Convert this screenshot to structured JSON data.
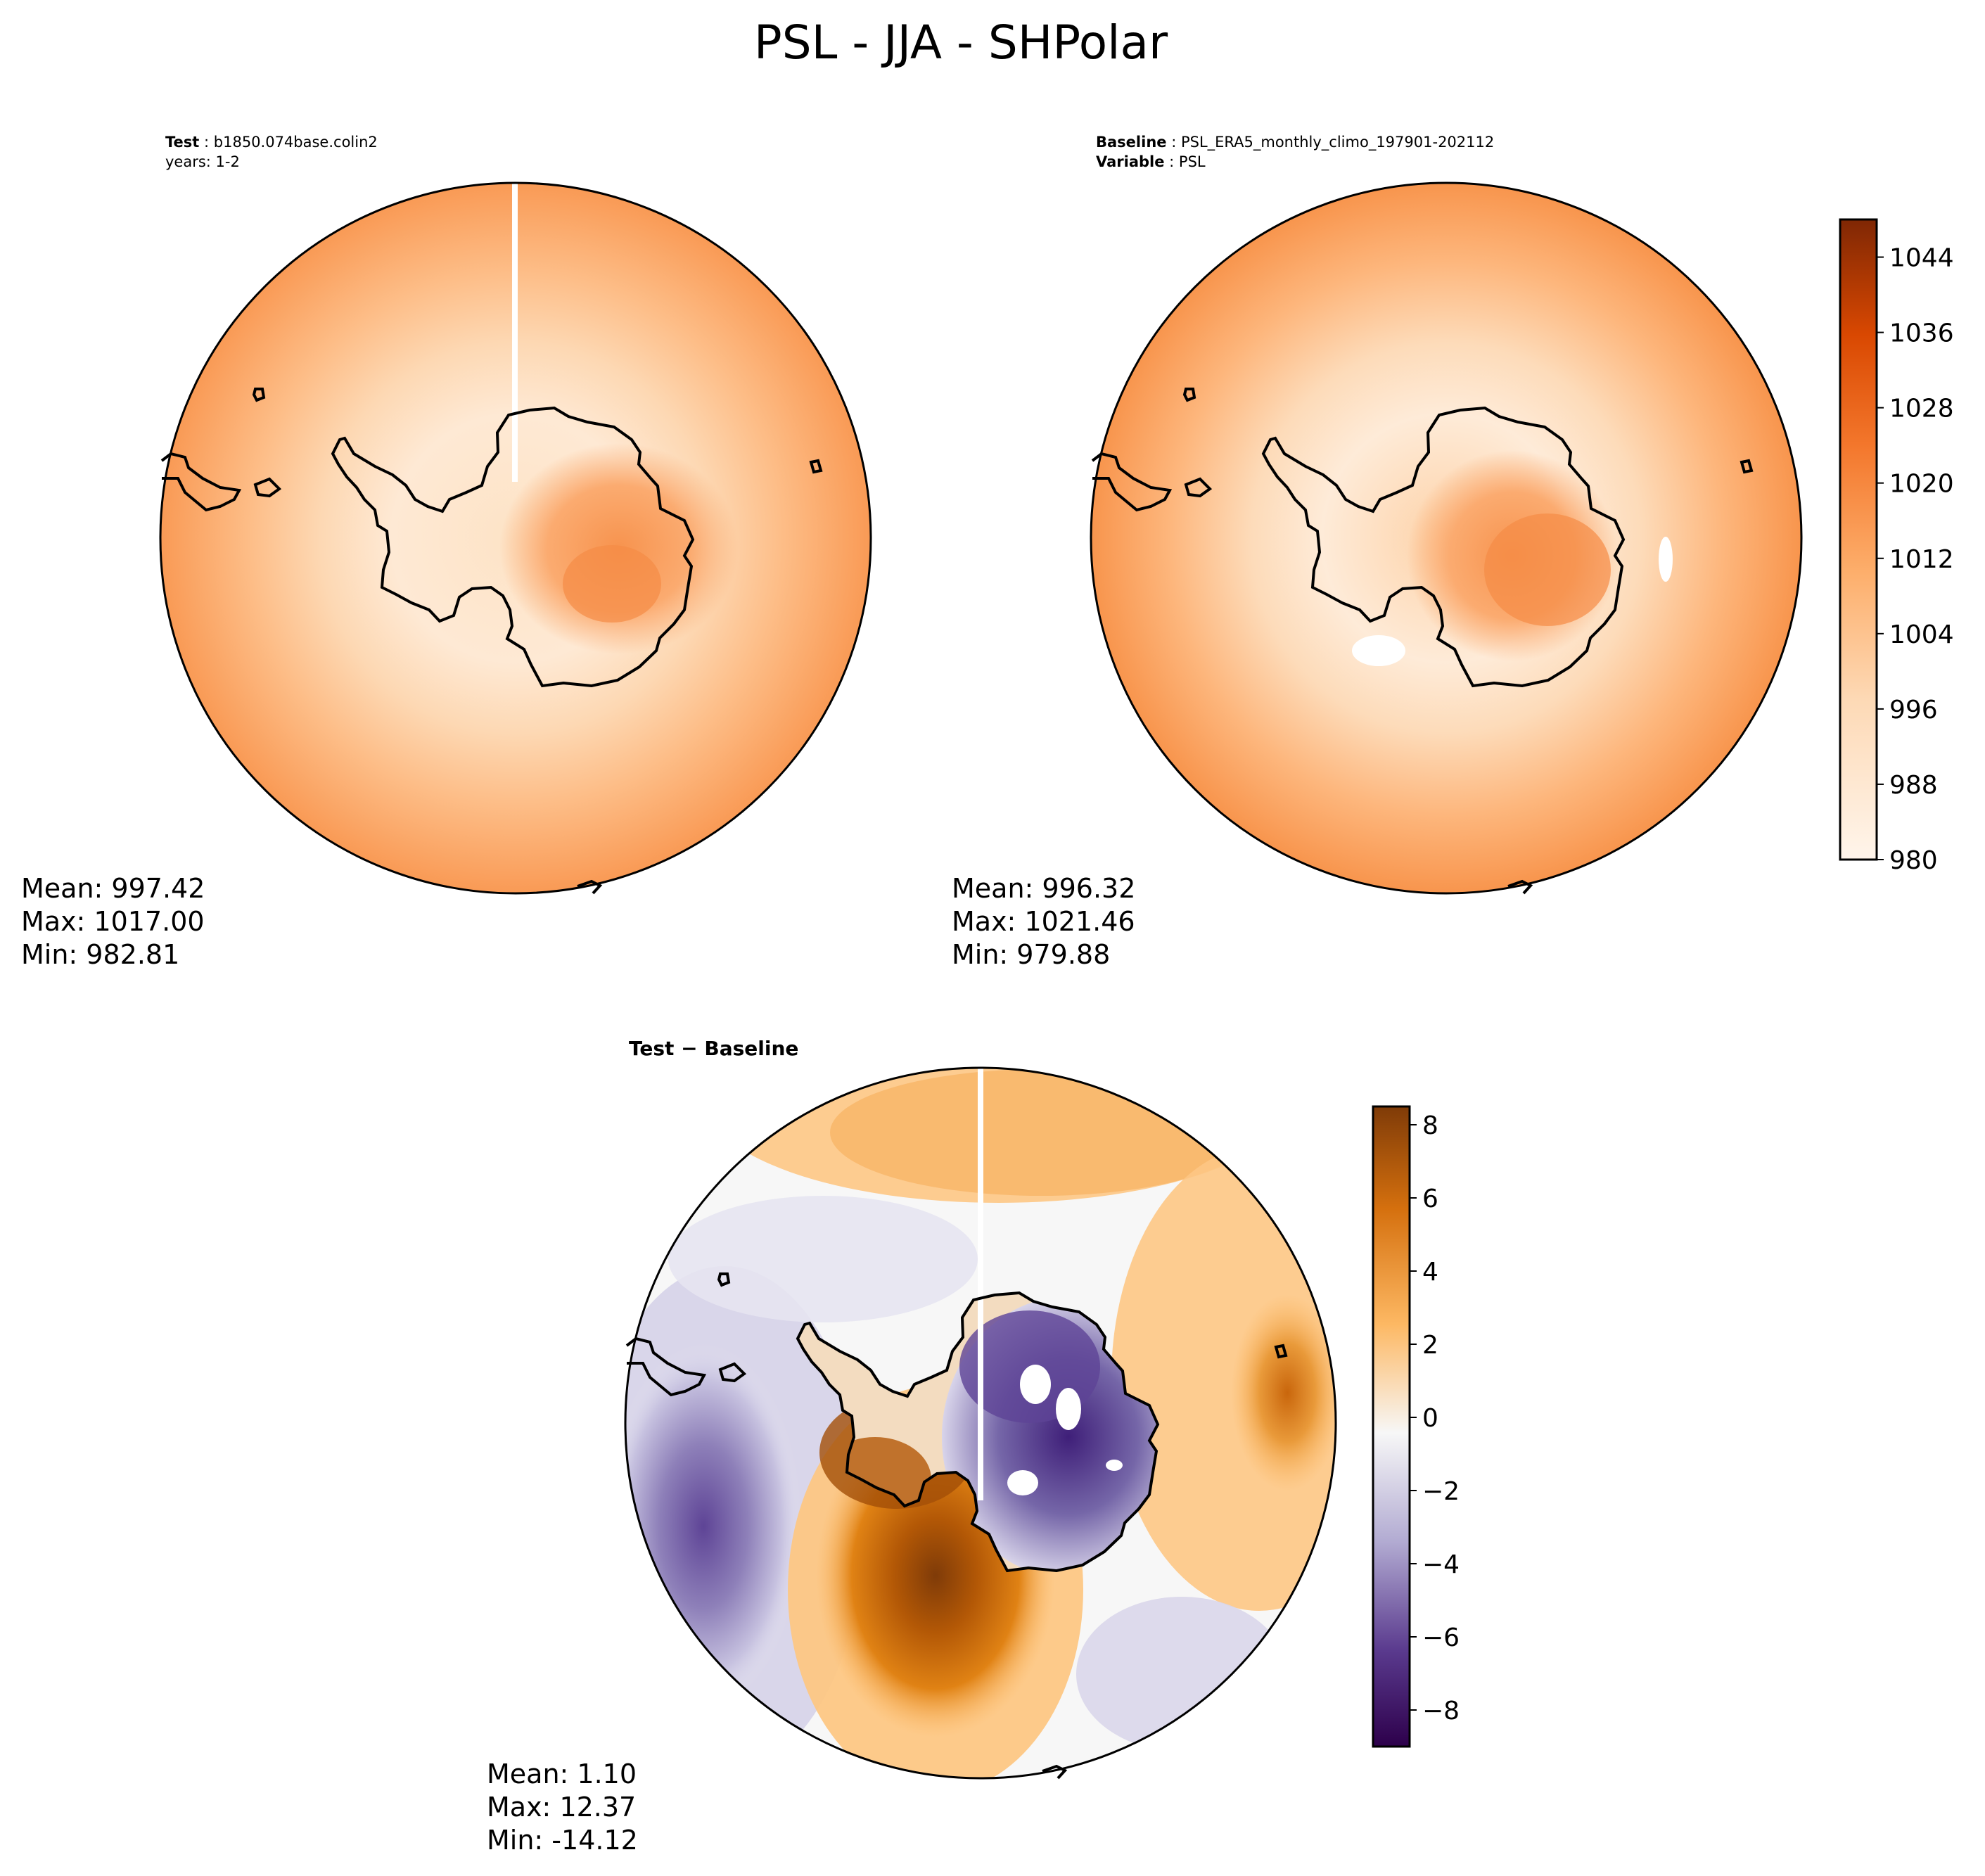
{
  "colors": {
    "seq_low": "#fff5eb",
    "seq_high": "#7f2704",
    "div_neg": "#2d004b",
    "div_zero": "#f7f7f7",
    "div_pos": "#7f3b08",
    "coast": "#000000"
  },
  "chart_data": [
    {
      "type": "heatmap",
      "panel": "test",
      "title": "PSL - JJA - SHPolar",
      "meta_key1": "Test",
      "meta_val1": "b1850.074base.colin2",
      "meta_line2": "years: 1-2",
      "stats": {
        "mean": "Mean: 997.42",
        "max": "Max: 1017.00",
        "min": "Min: 982.81"
      },
      "projection": "South Polar Stereographic",
      "field_range": [
        982.81,
        1017.0
      ]
    },
    {
      "type": "heatmap",
      "panel": "baseline",
      "meta_key1": "Baseline",
      "meta_val1": "PSL_ERA5_monthly_climo_197901-202112",
      "meta_key2": "Variable",
      "meta_val2": "PSL",
      "stats": {
        "mean": "Mean: 996.32",
        "max": "Max: 1021.46",
        "min": "Min: 979.88"
      },
      "field_range": [
        979.88,
        1021.46
      ],
      "colorbar": {
        "range": [
          980,
          1048
        ],
        "ticks": [
          "1044",
          "1036",
          "1028",
          "1020",
          "1012",
          "1004",
          "996",
          "988",
          "980"
        ],
        "tick_values": [
          1044,
          1036,
          1028,
          1020,
          1012,
          1004,
          996,
          988,
          980
        ]
      }
    },
    {
      "type": "heatmap",
      "panel": "difference",
      "subtitle": "Test − Baseline",
      "stats": {
        "mean": "Mean:  1.10",
        "max": "Max: 12.37",
        "min": "Min: -14.12"
      },
      "field_range": [
        -14.12,
        12.37
      ],
      "colorbar": {
        "range": [
          -9,
          8.5
        ],
        "ticks": [
          "8",
          "6",
          "4",
          "2",
          "0",
          "−2",
          "−4",
          "−6",
          "−8"
        ],
        "tick_values": [
          8,
          6,
          4,
          2,
          0,
          -2,
          -4,
          -6,
          -8
        ]
      }
    }
  ]
}
